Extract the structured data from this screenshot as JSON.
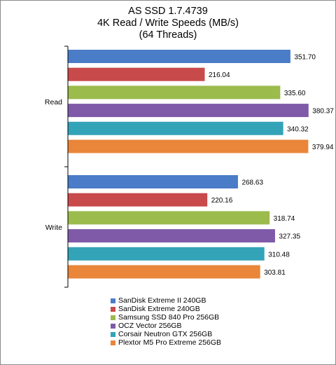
{
  "chart_data": {
    "type": "bar",
    "orientation": "horizontal",
    "title": "AS SSD 1.7.4739",
    "subtitle_lines": [
      "4K Read / Write Speeds (MB/s)",
      "(64 Threads)"
    ],
    "categories": [
      "Read",
      "Write"
    ],
    "xlim": [
      0,
      400
    ],
    "grid": false,
    "legend_position": "bottom",
    "series": [
      {
        "name": "SanDisk Extreme II 240GB",
        "color": "#4a7cc7",
        "values": [
          351.7,
          268.63
        ],
        "labels": [
          "351.70",
          "268.63"
        ]
      },
      {
        "name": "SanDisk Extreme 240GB",
        "color": "#c94a4a",
        "values": [
          216.04,
          220.16
        ],
        "labels": [
          "216.04",
          "220.16"
        ]
      },
      {
        "name": "Samsung SSD 840 Pro 256GB",
        "color": "#9bbb4c",
        "values": [
          335.6,
          318.74
        ],
        "labels": [
          "335.60",
          "318.74"
        ]
      },
      {
        "name": "OCZ Vector 256GB",
        "color": "#7f5aa8",
        "values": [
          380.37,
          327.35
        ],
        "labels": [
          "380.37",
          "327.35"
        ]
      },
      {
        "name": "Corsair Neutron GTX 256GB",
        "color": "#33a3b8",
        "values": [
          340.32,
          310.48
        ],
        "labels": [
          "340.32",
          "310.48"
        ]
      },
      {
        "name": "Plextor M5 Pro Extreme 256GB",
        "color": "#e9863a",
        "values": [
          379.94,
          303.81
        ],
        "labels": [
          "379.94",
          "303.81"
        ]
      }
    ]
  }
}
